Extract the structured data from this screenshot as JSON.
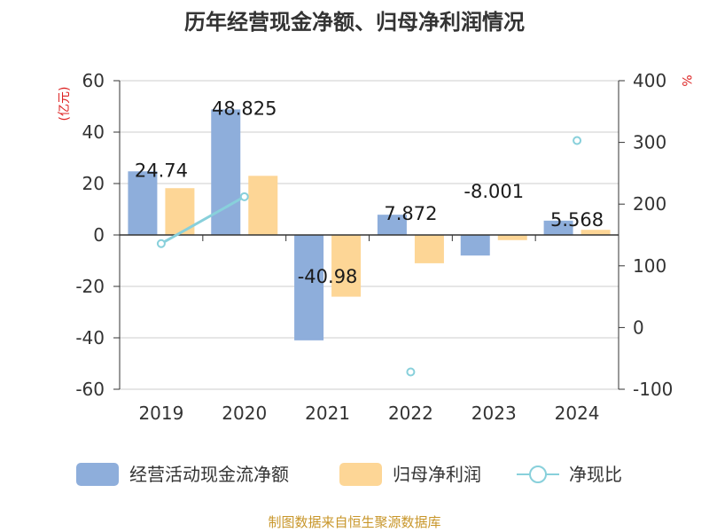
{
  "chart_data": {
    "type": "bar",
    "title": "历年经营现金净额、归母净利润情况",
    "left_axis_unit": "(亿元)",
    "right_axis_unit": "%",
    "categories": [
      "2019",
      "2020",
      "2021",
      "2022",
      "2023",
      "2024"
    ],
    "ylim": [
      -60,
      60
    ],
    "yticks": [
      "60",
      "40",
      "20",
      "0",
      "-20",
      "-40",
      "-60"
    ],
    "y2lim": [
      -100,
      400
    ],
    "y2ticks": [
      "400",
      "300",
      "200",
      "100",
      "0",
      "-100"
    ],
    "series": [
      {
        "name": "经营活动现金流净额",
        "type": "bar",
        "axis": "left",
        "color": "#8eaedb",
        "values": [
          24.74,
          48.825,
          -40.98,
          7.872,
          -8.001,
          5.568
        ],
        "labels": [
          "24.74",
          "48.825",
          "-40.98",
          "7.872",
          "-8.001",
          "5.568"
        ]
      },
      {
        "name": "归母净利润",
        "type": "bar",
        "axis": "left",
        "color": "#fdd696",
        "values": [
          18.2,
          23.0,
          -24.0,
          -11.0,
          -2.0,
          2.0
        ]
      },
      {
        "name": "净现比",
        "type": "line",
        "axis": "right",
        "color": "#88d0db",
        "values": [
          136,
          212,
          null,
          -72,
          null,
          303
        ]
      }
    ],
    "source": "制图数据来自恒生聚源数据库"
  }
}
